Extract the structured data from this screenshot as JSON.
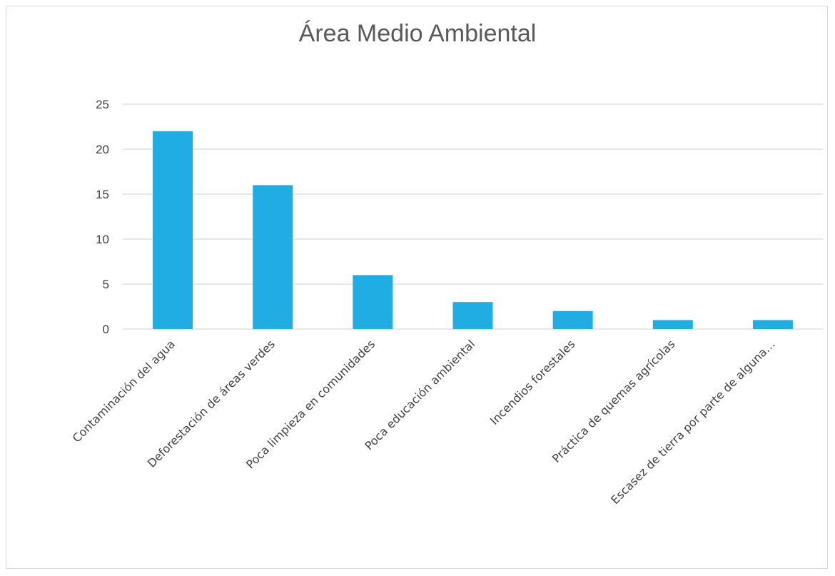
{
  "chart_data": {
    "type": "bar",
    "title": "Área Medio Ambiental",
    "categories": [
      "Contaminación del agua",
      "Deforestación de áreas verdes",
      "Poca limpieza en comunidades",
      "Poca educación ambiental",
      "Incendios forestales",
      "Práctica de quemas agrícolas",
      "Escasez de tierra por parte de alguna…"
    ],
    "values": [
      22,
      16,
      6,
      3,
      2,
      1,
      1
    ],
    "ylim": [
      0,
      25
    ],
    "yticks": [
      "0",
      "5",
      "10",
      "15",
      "20",
      "25"
    ],
    "xlabel": "",
    "ylabel": "",
    "grid": true,
    "bar_color": "#1fade4",
    "grid_color": "#d9d9d9"
  }
}
